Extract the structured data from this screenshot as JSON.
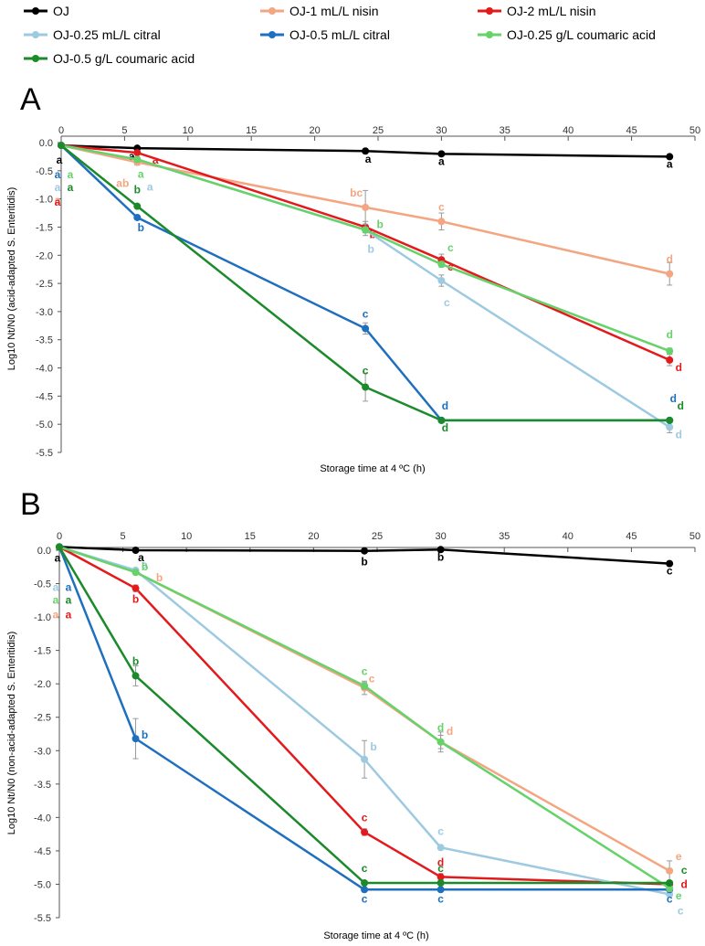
{
  "legend": [
    {
      "label": "OJ",
      "color": "#000000"
    },
    {
      "label": "OJ-1 mL/L nisin",
      "color": "#f4a582"
    },
    {
      "label": "OJ-2 mL/L nisin",
      "color": "#e31a1c"
    },
    {
      "label": "OJ-0.25 mL/L citral",
      "color": "#9ecae1"
    },
    {
      "label": "OJ-0.5 mL/L citral",
      "color": "#1f6fbf"
    },
    {
      "label": "OJ-0.25 g/L coumaric acid",
      "color": "#66d26a"
    },
    {
      "label": "OJ-0.5 g/L coumaric acid",
      "color": "#1a8a2a"
    }
  ],
  "chart_data": [
    {
      "panel": "A",
      "type": "line",
      "title": "",
      "xlabel": "Storage time at 4 ºC (h)",
      "ylabel": "Log10 Nt/N0 (acid-adapted S. Enteritidis)",
      "x": [
        0,
        6,
        24,
        30,
        48
      ],
      "xlim": [
        0,
        50
      ],
      "ylim": [
        -5.5,
        0
      ],
      "xticks": [
        "0",
        "5",
        "10",
        "15",
        "20",
        "25",
        "30",
        "35",
        "40",
        "45",
        "50"
      ],
      "yticks": [
        "0.0",
        "-0.5",
        "-1.0",
        "-1.5",
        "-2.0",
        "-2.5",
        "-3.0",
        "-3.5",
        "-4.0",
        "-4.5",
        "-5.0",
        "-5.5"
      ],
      "series": [
        {
          "name": "OJ",
          "color": "#000000",
          "values": [
            -0.05,
            -0.1,
            -0.15,
            -0.2,
            -0.25
          ],
          "errors": [
            0,
            0,
            0,
            0,
            0
          ],
          "letters": [
            "a",
            "a",
            "a",
            "a",
            "a"
          ]
        },
        {
          "name": "OJ-1 mL/L nisin",
          "color": "#f4a582",
          "values": [
            -0.05,
            -0.35,
            -1.15,
            -1.4,
            -2.33
          ],
          "errors": [
            0,
            0.05,
            0.3,
            0.15,
            0.2
          ],
          "letters": [
            "a",
            "ab",
            "bc",
            "c",
            "d"
          ]
        },
        {
          "name": "OJ-2 mL/L nisin",
          "color": "#e31a1c",
          "values": [
            -0.05,
            -0.18,
            -1.5,
            -2.08,
            -3.86
          ],
          "errors": [
            0,
            0,
            0.1,
            0.1,
            0.1
          ],
          "letters": [
            "a",
            "a",
            "b",
            "c",
            "d"
          ]
        },
        {
          "name": "OJ-0.25 mL/L citral",
          "color": "#9ecae1",
          "values": [
            -0.05,
            -0.3,
            -1.55,
            -2.45,
            -5.05
          ],
          "errors": [
            0,
            0.05,
            0.1,
            0.1,
            0.1
          ],
          "letters": [
            "a",
            "a",
            "b",
            "c",
            "d"
          ]
        },
        {
          "name": "OJ-0.5 mL/L citral",
          "color": "#1f6fbf",
          "values": [
            -0.05,
            -1.33,
            -3.3,
            -4.93,
            -4.93
          ],
          "errors": [
            0,
            0,
            0.1,
            0,
            0
          ],
          "letters": [
            "a",
            "b",
            "c",
            "d",
            "d"
          ]
        },
        {
          "name": "OJ-0.25 g/L coumaric acid",
          "color": "#66d26a",
          "values": [
            -0.05,
            -0.3,
            -1.55,
            -2.16,
            -3.7
          ],
          "errors": [
            0,
            0,
            0.05,
            0.05,
            0.05
          ],
          "letters": [
            "a",
            "a",
            "b",
            "c",
            "d"
          ]
        },
        {
          "name": "OJ-0.5 g/L coumaric acid",
          "color": "#1a8a2a",
          "values": [
            -0.05,
            -1.13,
            -4.34,
            -4.93,
            -4.93
          ],
          "errors": [
            0,
            0,
            0.25,
            0,
            0
          ],
          "letters": [
            "a",
            "b",
            "c",
            "d",
            "d"
          ]
        }
      ]
    },
    {
      "panel": "B",
      "type": "line",
      "title": "",
      "xlabel": "Storage time at 4 ºC (h)",
      "ylabel": "Log10 Nt/N0 (non-acid-adapted S. Enteritidis)",
      "x": [
        0,
        6,
        24,
        30,
        48
      ],
      "xlim": [
        0,
        50
      ],
      "ylim": [
        -5.5,
        0
      ],
      "xticks": [
        "0",
        "5",
        "10",
        "15",
        "20",
        "25",
        "30",
        "35",
        "40",
        "45",
        "50"
      ],
      "yticks": [
        "0.0",
        "-0.5",
        "-1.0",
        "-1.5",
        "-2.0",
        "-2.5",
        "-3.0",
        "-3.5",
        "-4.0",
        "-4.5",
        "-5.0",
        "-5.5"
      ],
      "series": [
        {
          "name": "OJ",
          "color": "#000000",
          "values": [
            0.05,
            0.0,
            -0.01,
            0.01,
            -0.2
          ],
          "errors": [
            0,
            0,
            0,
            0,
            0
          ],
          "letters": [
            "a",
            "a",
            "b",
            "b",
            "c"
          ]
        },
        {
          "name": "OJ-1 mL/L nisin",
          "color": "#f4a582",
          "values": [
            0.05,
            -0.33,
            -2.06,
            -2.87,
            -4.8
          ],
          "errors": [
            0,
            0,
            0.1,
            0.15,
            0.15
          ],
          "letters": [
            "a",
            "b",
            "c",
            "d",
            "e"
          ]
        },
        {
          "name": "OJ-2 mL/L nisin",
          "color": "#e31a1c",
          "values": [
            0.05,
            -0.57,
            -4.22,
            -4.89,
            -5.0
          ],
          "errors": [
            0,
            0.05,
            0.05,
            0.05,
            0
          ],
          "letters": [
            "a",
            "b",
            "c",
            "d",
            "d"
          ]
        },
        {
          "name": "OJ-0.25 mL/L citral",
          "color": "#9ecae1",
          "values": [
            0.05,
            -0.3,
            -3.13,
            -4.45,
            -5.15
          ],
          "errors": [
            0,
            0,
            0.28,
            0,
            0
          ],
          "letters": [
            "a",
            "a",
            "b",
            "c",
            "c"
          ]
        },
        {
          "name": "OJ-0.5 mL/L citral",
          "color": "#1f6fbf",
          "values": [
            0.05,
            -2.82,
            -5.08,
            -5.08,
            -5.08
          ],
          "errors": [
            0,
            0.3,
            0,
            0,
            0
          ],
          "letters": [
            "a",
            "b",
            "c",
            "c",
            "c"
          ]
        },
        {
          "name": "OJ-0.25 g/L coumaric acid",
          "color": "#66d26a",
          "values": [
            0.05,
            -0.33,
            -2.03,
            -2.87,
            -5.06
          ],
          "errors": [
            0,
            0,
            0.05,
            0.1,
            0.05
          ],
          "letters": [
            "a",
            "b",
            "c",
            "d",
            "e"
          ]
        },
        {
          "name": "OJ-0.5 g/L coumaric acid",
          "color": "#1a8a2a",
          "values": [
            0.05,
            -1.88,
            -4.98,
            -4.98,
            -4.98
          ],
          "errors": [
            0,
            0.15,
            0,
            0,
            0
          ],
          "letters": [
            "a",
            "b",
            "c",
            "c",
            "c"
          ]
        }
      ]
    }
  ]
}
